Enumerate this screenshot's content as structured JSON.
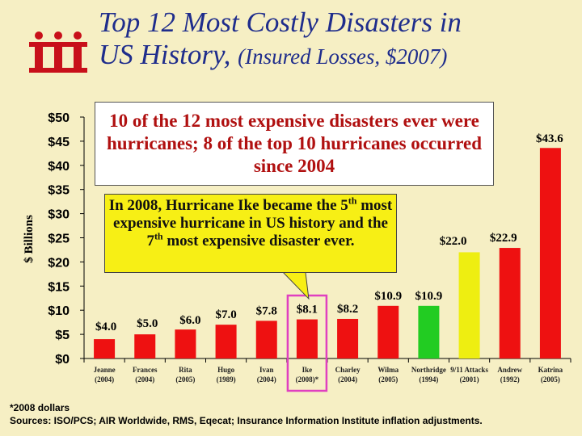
{
  "title": {
    "line1": "Top 12 Most Costly Disasters in",
    "line2_main": "US History, ",
    "line2_sub": "(Insured Losses, $2007)"
  },
  "notes": {
    "box_text": "10 of the 12 most expensive disasters ever were hurricanes; 8 of the top 10 hurricanes occurred since 2004",
    "callout_p1": "In 2008, Hurricane Ike became the 5",
    "callout_sup1": "th",
    "callout_p2": " most expensive hurricane in US history and the 7",
    "callout_sup2": "th",
    "callout_p3": " most expensive disaster ever."
  },
  "footnotes": {
    "line1": "*2008 dollars",
    "line2": "Sources: ISO/PCS; AIR Worldwide, RMS, Eqecat; Insurance Information Institute inflation adjustments."
  },
  "chart_data": {
    "type": "bar",
    "ylabel": "$ Billions",
    "ylim": [
      0,
      50
    ],
    "yticks": [
      0,
      5,
      10,
      15,
      20,
      25,
      30,
      35,
      40,
      45,
      50
    ],
    "ytick_labels": [
      "$0",
      "$5",
      "$10",
      "$15",
      "$20",
      "$25",
      "$30",
      "$35",
      "$40",
      "$45",
      "$50"
    ],
    "categories": [
      "Jeanne",
      "Frances",
      "Rita",
      "Hugo",
      "Ivan",
      "Ike",
      "Charley",
      "Wilma",
      "Northridge",
      "9/11 Attacks",
      "Andrew",
      "Katrina"
    ],
    "years": [
      "(2004)",
      "(2004)",
      "(2005)",
      "(1989)",
      "(2004)",
      "(2008)*",
      "(2004)",
      "(2005)",
      "(1994)",
      "(2001)",
      "(1992)",
      "(2005)"
    ],
    "values": [
      4.0,
      5.0,
      6.0,
      7.0,
      7.8,
      8.1,
      8.2,
      10.9,
      10.9,
      22.0,
      22.9,
      43.6
    ],
    "value_labels": [
      "$4.0",
      "$5.0",
      "$6.0",
      "$7.0",
      "$7.8",
      "$8.1",
      "$8.2",
      "$10.9",
      "$10.9",
      "$22.0",
      "$22.9",
      "$43.6"
    ],
    "colors": [
      "#ee1111",
      "#ee1111",
      "#ee1111",
      "#ee1111",
      "#ee1111",
      "#ee1111",
      "#ee1111",
      "#ee1111",
      "#22cc22",
      "#eeee11",
      "#ee1111",
      "#ee1111"
    ],
    "highlight_category": "Ike",
    "highlight_color": "#e040c0",
    "grid": false,
    "legend": "none"
  }
}
